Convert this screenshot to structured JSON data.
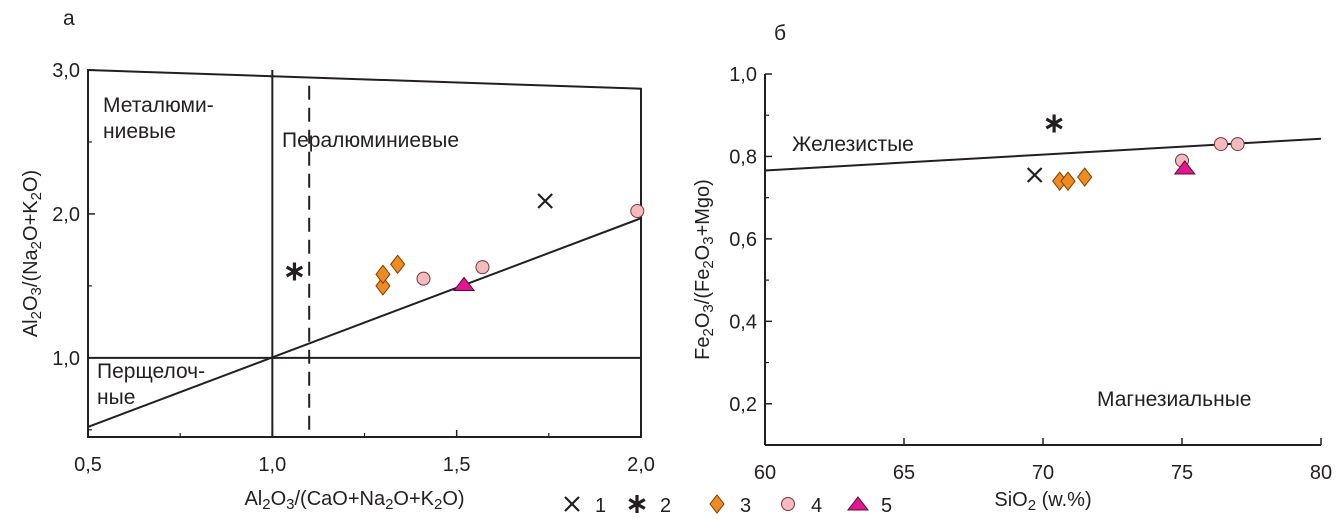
{
  "chart_data": [
    {
      "panel_label": "а",
      "type": "scatter",
      "xlabel": "Al2O3/(CaO+Na2O+K2O)",
      "ylabel": "Al2O3/(Na2O+K2O)",
      "xlim": [
        0.5,
        2.0
      ],
      "ylim": [
        0.45,
        3.0
      ],
      "x_ticks": [
        "0,5",
        "1,0",
        "1,5",
        "2,0"
      ],
      "y_ticks": [
        "1,0",
        "2,0",
        "3,0"
      ],
      "x_tick_values": [
        0.5,
        1.0,
        1.5,
        2.0
      ],
      "y_tick_values": [
        1.0,
        2.0,
        3.0
      ],
      "region_labels": {
        "metaluminous_line1": "Металюми-",
        "metaluminous_line2": "ниевые",
        "peraluminous": "Пералюминиевые",
        "peralkaline_line1": "Перщелоч-",
        "peralkaline_line2": "ные"
      },
      "lines": [
        {
          "name": "A/CNK = 1",
          "points": [
            [
              1.0,
              0.45
            ],
            [
              1.0,
              3.0
            ]
          ],
          "style": "solid"
        },
        {
          "name": "A/CNK = 1.1",
          "points": [
            [
              1.1,
              0.5
            ],
            [
              1.1,
              2.9
            ]
          ],
          "style": "dashed"
        },
        {
          "name": "A/NK = 1",
          "points": [
            [
              0.5,
              1.0
            ],
            [
              2.0,
              1.0
            ]
          ],
          "style": "solid"
        },
        {
          "name": "A/NK = A/CNK",
          "points": [
            [
              0.5,
              0.52
            ],
            [
              2.0,
              1.97
            ]
          ],
          "style": "solid"
        },
        {
          "name": "frame top",
          "points": [
            [
              0.5,
              3.0
            ],
            [
              2.0,
              2.87
            ]
          ],
          "style": "solid"
        }
      ],
      "series": [
        {
          "legend_index": "1",
          "marker": "cross",
          "points": [
            [
              1.74,
              2.09
            ]
          ]
        },
        {
          "legend_index": "2",
          "marker": "asterisk",
          "points": [
            [
              1.06,
              1.6
            ]
          ]
        },
        {
          "legend_index": "3",
          "marker": "diamond",
          "points": [
            [
              1.3,
              1.5
            ],
            [
              1.3,
              1.58
            ],
            [
              1.34,
              1.65
            ]
          ]
        },
        {
          "legend_index": "4",
          "marker": "circle",
          "points": [
            [
              1.41,
              1.55
            ],
            [
              1.57,
              1.63
            ],
            [
              1.99,
              2.02
            ]
          ]
        },
        {
          "legend_index": "5",
          "marker": "triangle",
          "points": [
            [
              1.52,
              1.51
            ]
          ]
        }
      ]
    },
    {
      "panel_label": "б",
      "type": "scatter",
      "xlabel": "SiO2 (w.%)",
      "ylabel": "Fe2O3/(Fe2O3+Mgo)",
      "xlim": [
        60,
        80
      ],
      "ylim": [
        0.1,
        1.0
      ],
      "x_ticks": [
        "60",
        "65",
        "70",
        "75",
        "80"
      ],
      "y_ticks": [
        "0,2",
        "0,4",
        "0,6",
        "0,8",
        "1,0"
      ],
      "x_tick_values": [
        60,
        65,
        70,
        75,
        80
      ],
      "y_tick_values": [
        0.2,
        0.4,
        0.6,
        0.8,
        1.0
      ],
      "region_labels": {
        "ferroan": "Железистые",
        "magnesian": "Магнезиальные"
      },
      "lines": [
        {
          "name": "ferroan/magnesian boundary",
          "points": [
            [
              60,
              0.766
            ],
            [
              80,
              0.843
            ]
          ],
          "style": "solid"
        }
      ],
      "series": [
        {
          "legend_index": "1",
          "marker": "cross",
          "points": [
            [
              69.7,
              0.755
            ]
          ]
        },
        {
          "legend_index": "2",
          "marker": "asterisk",
          "points": [
            [
              70.4,
              0.88
            ]
          ]
        },
        {
          "legend_index": "3",
          "marker": "diamond",
          "points": [
            [
              70.6,
              0.74
            ],
            [
              70.9,
              0.74
            ],
            [
              71.5,
              0.75
            ]
          ]
        },
        {
          "legend_index": "4",
          "marker": "circle",
          "points": [
            [
              75.0,
              0.79
            ],
            [
              76.4,
              0.83
            ],
            [
              77.0,
              0.83
            ]
          ]
        },
        {
          "legend_index": "5",
          "marker": "triangle",
          "points": [
            [
              75.1,
              0.772
            ]
          ]
        }
      ]
    }
  ],
  "legend": {
    "items": [
      {
        "marker": "cross",
        "label": "1"
      },
      {
        "marker": "asterisk",
        "label": "2"
      },
      {
        "marker": "diamond",
        "label": "3"
      },
      {
        "marker": "circle",
        "label": "4"
      },
      {
        "marker": "triangle",
        "label": "5"
      }
    ]
  },
  "colors": {
    "axis": "#231f20",
    "cross": "#231f20",
    "asterisk": "#231f20",
    "diamond_fill": "#f28a1e",
    "diamond_stroke": "#7a3e00",
    "circle_fill": "#f6b9bd",
    "circle_stroke": "#6d3a3a",
    "triangle_fill": "#e4168c",
    "triangle_stroke": "#5a0a3a"
  }
}
